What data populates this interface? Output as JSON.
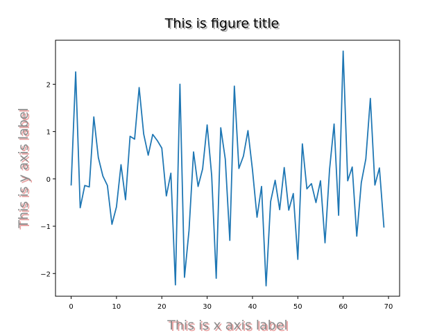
{
  "chart_data": {
    "type": "line",
    "title": "This is figure title",
    "xlabel": "This is x axis label",
    "ylabel": "This is y axis label",
    "xlim": [
      -3.45,
      72.45
    ],
    "ylim": [
      -2.48,
      2.93
    ],
    "xticks": [
      0,
      10,
      20,
      30,
      40,
      50,
      60,
      70
    ],
    "yticks": [
      -2,
      -1,
      0,
      1,
      2
    ],
    "xtick_labels": [
      "0",
      "10",
      "20",
      "30",
      "40",
      "50",
      "60",
      "70"
    ],
    "ytick_labels": [
      "−2",
      "−1",
      "0",
      "1",
      "2"
    ],
    "grid": false,
    "colors": {
      "line": "#1f77b4",
      "title": "#000000",
      "title_shadow": "#b0b0b0",
      "label": "#8c8c8c",
      "label_shadow": "#e8a0a0"
    },
    "series": [
      {
        "x": [
          0,
          1,
          2,
          3,
          4,
          5,
          6,
          7,
          8,
          9,
          10,
          11,
          12,
          13,
          14,
          15,
          16,
          17,
          18,
          19,
          20,
          21,
          22,
          23,
          24,
          25,
          26,
          27,
          28,
          29,
          30,
          31,
          32,
          33,
          34,
          35,
          36,
          37,
          38,
          39,
          40,
          41,
          42,
          43,
          44,
          45,
          46,
          47,
          48,
          49,
          50,
          51,
          52,
          53,
          54,
          55,
          56,
          57,
          58,
          59,
          60,
          61,
          62,
          63,
          64,
          65,
          66,
          67,
          68,
          69
        ],
        "values": [
          -0.14,
          2.26,
          -0.61,
          -0.14,
          -0.17,
          1.31,
          0.45,
          0.06,
          -0.14,
          -0.96,
          -0.59,
          0.3,
          -0.44,
          0.9,
          0.84,
          1.93,
          0.95,
          0.5,
          0.94,
          0.81,
          0.65,
          -0.36,
          0.12,
          -2.24,
          2.0,
          -2.08,
          -1.09,
          0.57,
          -0.16,
          0.21,
          1.14,
          0.07,
          -2.1,
          1.08,
          0.42,
          -1.3,
          1.96,
          0.22,
          0.48,
          1.02,
          0.19,
          -0.81,
          -0.16,
          -2.26,
          -0.48,
          -0.03,
          -0.65,
          0.24,
          -0.66,
          -0.31,
          -1.7,
          0.74,
          -0.21,
          -0.1,
          -0.5,
          -0.04,
          -1.35,
          0.2,
          1.16,
          -0.77,
          2.7,
          -0.04,
          0.25,
          -1.21,
          -0.08,
          0.42,
          1.7,
          -0.13,
          0.23,
          -1.03
        ]
      }
    ]
  }
}
